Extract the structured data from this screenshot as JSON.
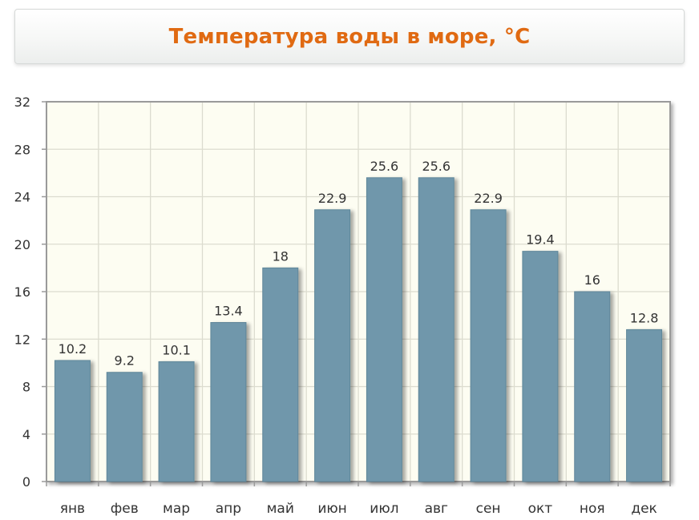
{
  "header": {
    "title": "Температура воды в море, °C"
  },
  "chart_data": {
    "type": "bar",
    "title": "Температура воды в море, °C",
    "xlabel": "",
    "ylabel": "",
    "categories": [
      "янв",
      "фев",
      "мар",
      "апр",
      "май",
      "июн",
      "июл",
      "авг",
      "сен",
      "окт",
      "ноя",
      "дек"
    ],
    "values": [
      10.2,
      9.2,
      10.1,
      13.4,
      18,
      22.9,
      25.6,
      25.6,
      22.9,
      19.4,
      16,
      12.8
    ],
    "value_labels": [
      "10.2",
      "9.2",
      "10.1",
      "13.4",
      "18",
      "22.9",
      "25.6",
      "25.6",
      "22.9",
      "19.4",
      "16",
      "12.8"
    ],
    "ylim": [
      0,
      32
    ],
    "yticks": [
      0,
      4,
      8,
      12,
      16,
      20,
      24,
      28,
      32
    ],
    "grid": true,
    "colors": {
      "bar": "#7097ab",
      "plot_background": "#fdfdf2",
      "grid": "#dcdccf",
      "axis": "#9a9a9a",
      "title": "#e06a12"
    }
  }
}
